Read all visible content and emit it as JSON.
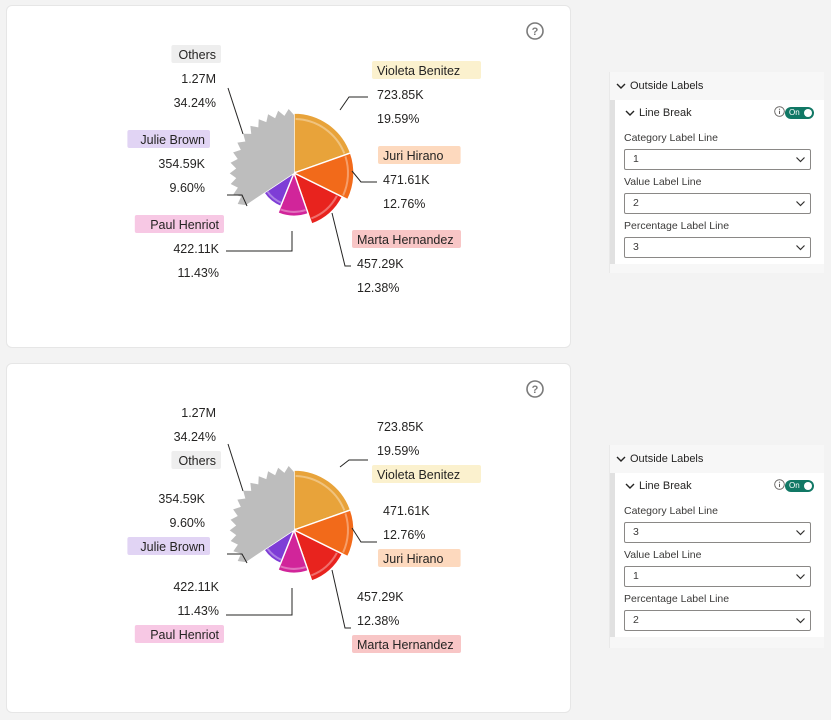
{
  "charts": [
    {
      "chart_data": {
        "type": "pie",
        "slices": [
          {
            "name": "Violeta Benitez",
            "value": 723.85,
            "value_label": "723.85K",
            "percent_label": "19.59%",
            "color": "#E8A33A",
            "label_bg": "#FBF1CE"
          },
          {
            "name": "Juri Hirano",
            "value": 471.61,
            "value_label": "471.61K",
            "percent_label": "12.76%",
            "color": "#F26A1A",
            "label_bg": "#FDD9BE"
          },
          {
            "name": "Marta Hernandez",
            "value": 457.29,
            "value_label": "457.29K",
            "percent_label": "12.38%",
            "color": "#E8231E",
            "label_bg": "#F8C6C6"
          },
          {
            "name": "Paul Henriot",
            "value": 422.11,
            "value_label": "422.11K",
            "percent_label": "11.43%",
            "color": "#D1259A",
            "label_bg": "#F7C8E4"
          },
          {
            "name": "Julie Brown",
            "value": 354.59,
            "value_label": "354.59K",
            "percent_label": "9.60%",
            "color": "#7E3DD6",
            "label_bg": "#E1D4F4"
          },
          {
            "name": "Others",
            "value": 1270,
            "value_label": "1.27M",
            "percent_label": "34.24%",
            "color": "#BDBDBD",
            "label_bg": "#EEEEEE"
          }
        ]
      },
      "line_order": [
        "name",
        "value",
        "percent"
      ]
    },
    {
      "chart_data": {
        "type": "pie",
        "slices": [
          {
            "name": "Violeta Benitez",
            "value": 723.85,
            "value_label": "723.85K",
            "percent_label": "19.59%",
            "color": "#E8A33A",
            "label_bg": "#FBF1CE"
          },
          {
            "name": "Juri Hirano",
            "value": 471.61,
            "value_label": "471.61K",
            "percent_label": "12.76%",
            "color": "#F26A1A",
            "label_bg": "#FDD9BE"
          },
          {
            "name": "Marta Hernandez",
            "value": 457.29,
            "value_label": "457.29K",
            "percent_label": "12.38%",
            "color": "#E8231E",
            "label_bg": "#F8C6C6"
          },
          {
            "name": "Paul Henriot",
            "value": 422.11,
            "value_label": "422.11K",
            "percent_label": "11.43%",
            "color": "#D1259A",
            "label_bg": "#F7C8E4"
          },
          {
            "name": "Julie Brown",
            "value": 354.59,
            "value_label": "354.59K",
            "percent_label": "9.60%",
            "color": "#7E3DD6",
            "label_bg": "#E1D4F4"
          },
          {
            "name": "Others",
            "value": 1270,
            "value_label": "1.27M",
            "percent_label": "34.24%",
            "color": "#BDBDBD",
            "label_bg": "#EEEEEE"
          }
        ]
      },
      "line_order": [
        "value",
        "percent",
        "name"
      ]
    }
  ],
  "panels": [
    {
      "section_title": "Outside Labels",
      "subsection_title": "Line Break",
      "toggle_label": "On",
      "fields": [
        {
          "label": "Category Label Line",
          "value": "1"
        },
        {
          "label": "Value Label Line",
          "value": "2"
        },
        {
          "label": "Percentage Label Line",
          "value": "3"
        }
      ]
    },
    {
      "section_title": "Outside Labels",
      "subsection_title": "Line Break",
      "toggle_label": "On",
      "fields": [
        {
          "label": "Category Label Line",
          "value": "3"
        },
        {
          "label": "Value Label Line",
          "value": "1"
        },
        {
          "label": "Percentage Label Line",
          "value": "2"
        }
      ]
    }
  ],
  "colors": {
    "toggle_on": "#117865",
    "accent_text": "#252423"
  }
}
